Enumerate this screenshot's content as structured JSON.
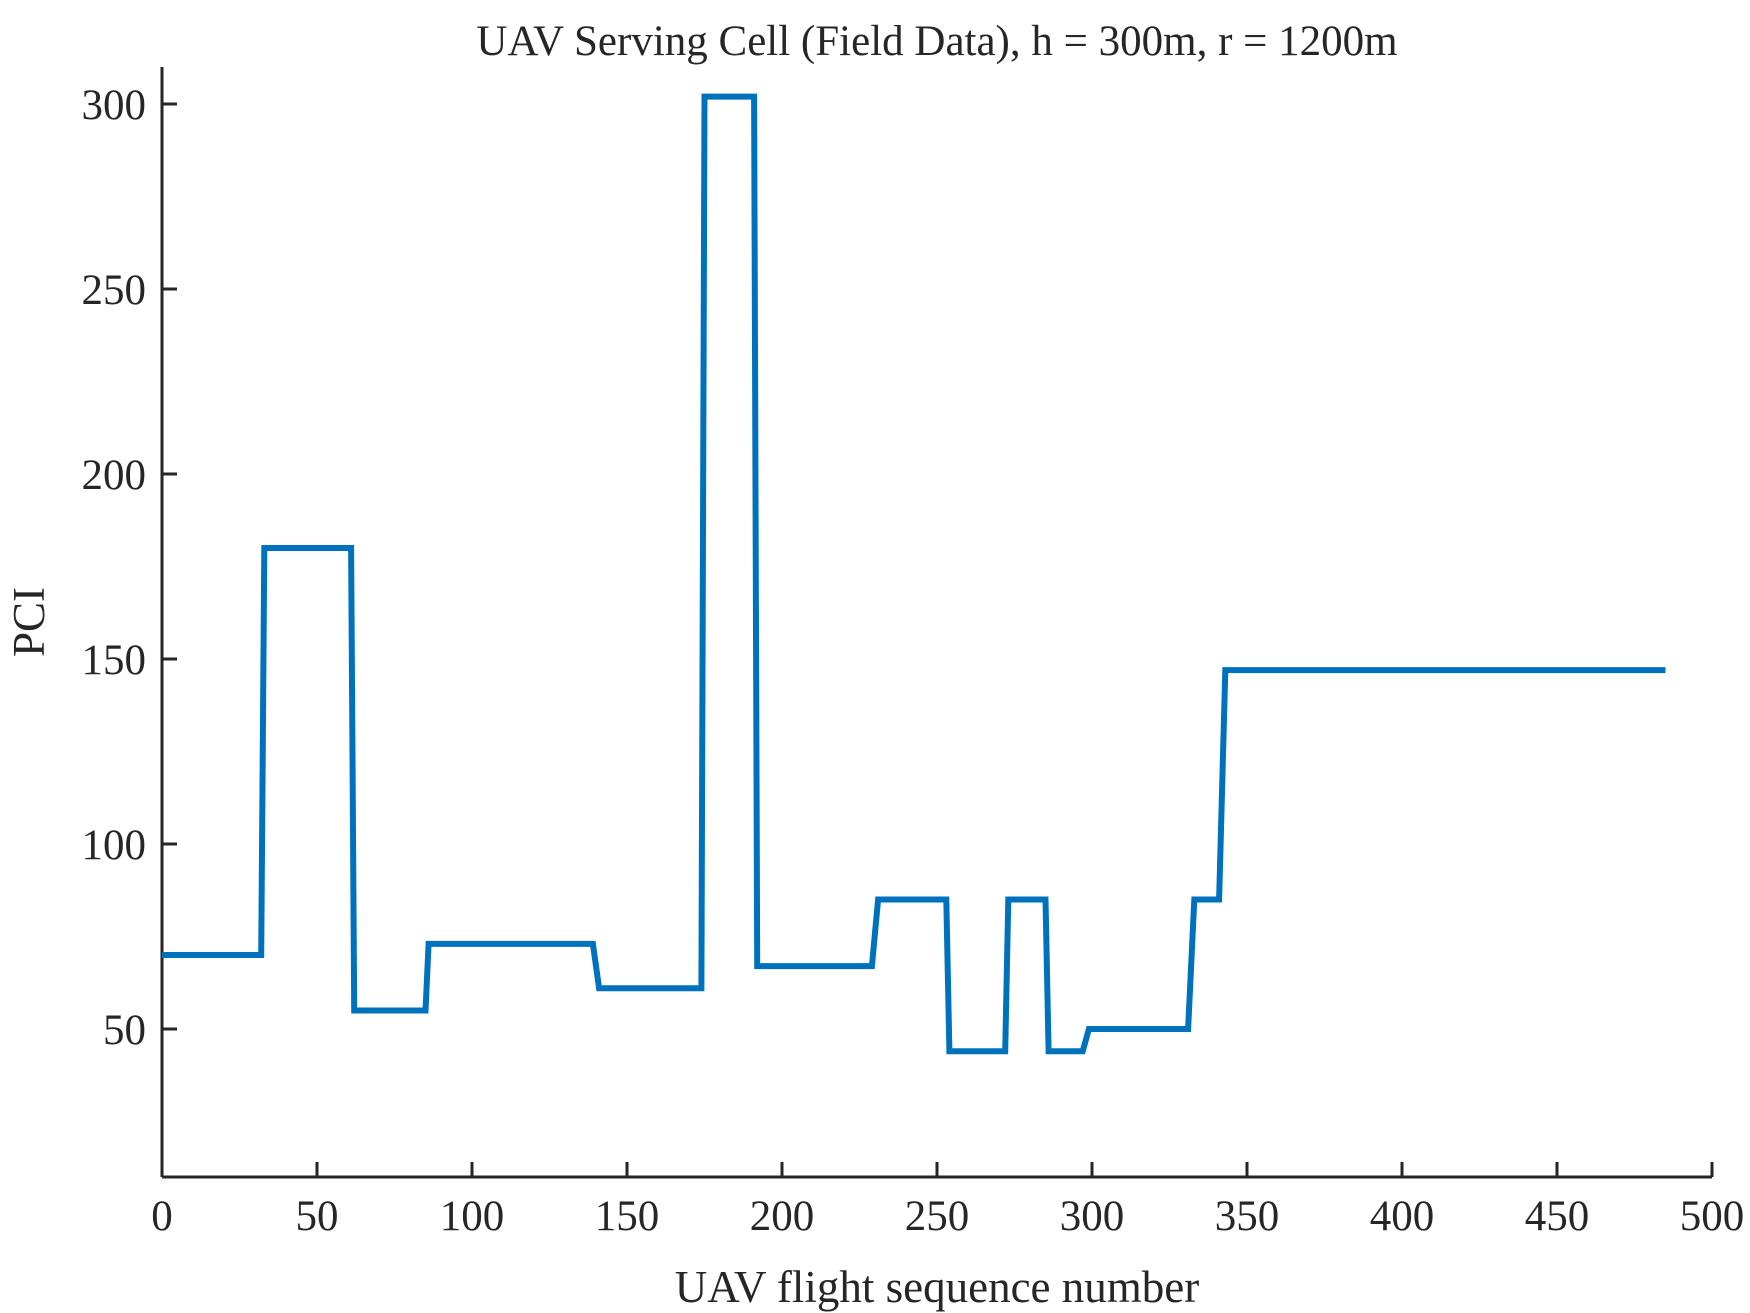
{
  "chart_data": {
    "type": "line",
    "title": "UAV Serving Cell (Field Data), h = 300m, r = 1200m",
    "xlabel": "UAV flight sequence number",
    "ylabel": "PCI",
    "xlim": [
      0,
      500
    ],
    "ylim": [
      10,
      310
    ],
    "xticks": [
      0,
      50,
      100,
      150,
      200,
      250,
      300,
      350,
      400,
      450,
      500
    ],
    "yticks": [
      50,
      100,
      150,
      200,
      250,
      300
    ],
    "grid": false,
    "color": "#0072BD",
    "series": [
      {
        "x": [
          0,
          32,
          33,
          61,
          62,
          85,
          86,
          139,
          141,
          174,
          175,
          191,
          192,
          229,
          231,
          253,
          254,
          272,
          273,
          285,
          286,
          297,
          299,
          331,
          333,
          341,
          343,
          485
        ],
        "y": [
          70,
          70,
          180,
          180,
          55,
          55,
          73,
          73,
          61,
          61,
          302,
          302,
          67,
          67,
          85,
          85,
          44,
          44,
          85,
          85,
          44,
          44,
          50,
          50,
          85,
          85,
          147,
          147
        ]
      }
    ]
  }
}
